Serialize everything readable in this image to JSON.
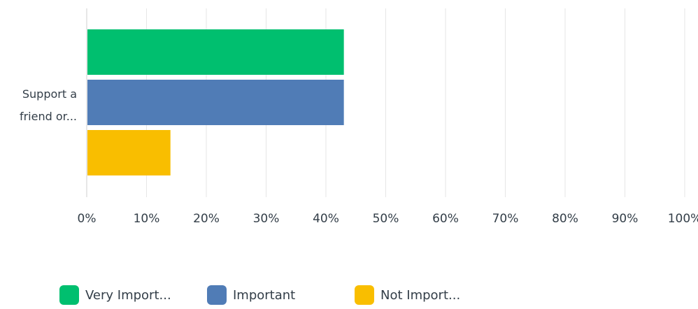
{
  "chart_data": {
    "type": "bar",
    "orientation": "horizontal",
    "categories": [
      "Support a friend or..."
    ],
    "category_label_lines": [
      "Support a",
      "friend or..."
    ],
    "series": [
      {
        "name": "Very Import...",
        "color": "#00bf6f",
        "values": [
          43
        ]
      },
      {
        "name": "Important",
        "color": "#507cb6",
        "values": [
          43
        ]
      },
      {
        "name": "Not Import...",
        "color": "#f9be00",
        "values": [
          14
        ]
      }
    ],
    "xlim": [
      0,
      100
    ],
    "x_ticks": [
      "0%",
      "10%",
      "20%",
      "30%",
      "40%",
      "50%",
      "60%",
      "70%",
      "80%",
      "90%",
      "100%"
    ],
    "grid": true,
    "legend_position": "bottom"
  }
}
